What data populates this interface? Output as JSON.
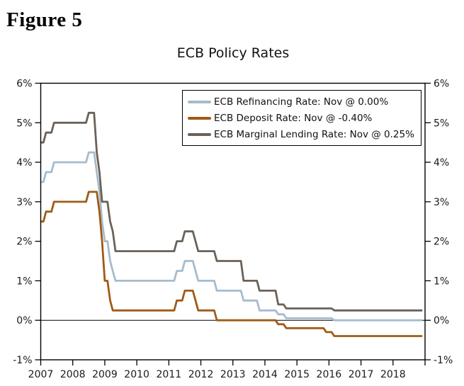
{
  "figure_label": "Figure 5",
  "chart_data": {
    "type": "line",
    "title": "ECB Policy Rates",
    "x_start": "2007-01",
    "x_end": "2018-11",
    "x_months_total": 144,
    "ylim": [
      -1,
      6
    ],
    "grid": "zero-line-only",
    "legend_position": "inside-top-right",
    "axis_color": "#000000",
    "y_ticks": [
      {
        "value": 6,
        "label": "6%"
      },
      {
        "value": 5,
        "label": "5%"
      },
      {
        "value": 4,
        "label": "4%"
      },
      {
        "value": 3,
        "label": "3%"
      },
      {
        "value": 2,
        "label": "2%"
      },
      {
        "value": 1,
        "label": "1%"
      },
      {
        "value": 0,
        "label": "0%"
      },
      {
        "value": -1,
        "label": "-1%"
      }
    ],
    "x_ticks": [
      {
        "year": 2007,
        "label": "2007"
      },
      {
        "year": 2008,
        "label": "2008"
      },
      {
        "year": 2009,
        "label": "2009"
      },
      {
        "year": 2010,
        "label": "2010"
      },
      {
        "year": 2011,
        "label": "2011"
      },
      {
        "year": 2012,
        "label": "2012"
      },
      {
        "year": 2013,
        "label": "2013"
      },
      {
        "year": 2014,
        "label": "2014"
      },
      {
        "year": 2015,
        "label": "2015"
      },
      {
        "year": 2016,
        "label": "2016"
      },
      {
        "year": 2017,
        "label": "2017"
      },
      {
        "year": 2018,
        "label": "2018"
      }
    ],
    "series": [
      {
        "id": "refinancing",
        "label": "ECB Refinancing Rate: Nov @ 0.00%",
        "color": "#a5bccd",
        "steps": [
          [
            "2007-01",
            3.5
          ],
          [
            "2007-03",
            3.75
          ],
          [
            "2007-06",
            4.0
          ],
          [
            "2008-07",
            4.25
          ],
          [
            "2008-10",
            3.75
          ],
          [
            "2008-11",
            3.25
          ],
          [
            "2008-12",
            2.5
          ],
          [
            "2009-01",
            2.0
          ],
          [
            "2009-03",
            1.5
          ],
          [
            "2009-04",
            1.25
          ],
          [
            "2009-05",
            1.0
          ],
          [
            "2011-04",
            1.25
          ],
          [
            "2011-07",
            1.5
          ],
          [
            "2011-11",
            1.25
          ],
          [
            "2011-12",
            1.0
          ],
          [
            "2012-07",
            0.75
          ],
          [
            "2013-05",
            0.5
          ],
          [
            "2013-11",
            0.25
          ],
          [
            "2014-06",
            0.15
          ],
          [
            "2014-09",
            0.05
          ],
          [
            "2016-03",
            0.0
          ]
        ]
      },
      {
        "id": "deposit",
        "label": "ECB Deposit Rate: Nov @ -0.40%",
        "color": "#a05a15",
        "steps": [
          [
            "2007-01",
            2.5
          ],
          [
            "2007-03",
            2.75
          ],
          [
            "2007-06",
            3.0
          ],
          [
            "2008-07",
            3.25
          ],
          [
            "2008-11",
            2.75
          ],
          [
            "2008-12",
            2.0
          ],
          [
            "2009-01",
            1.0
          ],
          [
            "2009-03",
            0.5
          ],
          [
            "2009-04",
            0.25
          ],
          [
            "2011-04",
            0.5
          ],
          [
            "2011-07",
            0.75
          ],
          [
            "2011-11",
            0.5
          ],
          [
            "2011-12",
            0.25
          ],
          [
            "2012-07",
            0.0
          ],
          [
            "2014-06",
            -0.1
          ],
          [
            "2014-09",
            -0.2
          ],
          [
            "2015-12",
            -0.3
          ],
          [
            "2016-03",
            -0.4
          ]
        ]
      },
      {
        "id": "marginal_lending",
        "label": "ECB Marginal Lending Rate: Nov @ 0.25%",
        "color": "#6b6158",
        "steps": [
          [
            "2007-01",
            4.5
          ],
          [
            "2007-03",
            4.75
          ],
          [
            "2007-06",
            5.0
          ],
          [
            "2008-07",
            5.25
          ],
          [
            "2008-10",
            4.25
          ],
          [
            "2008-11",
            3.75
          ],
          [
            "2008-12",
            3.0
          ],
          [
            "2009-03",
            2.5
          ],
          [
            "2009-04",
            2.25
          ],
          [
            "2009-05",
            1.75
          ],
          [
            "2011-04",
            2.0
          ],
          [
            "2011-07",
            2.25
          ],
          [
            "2011-11",
            2.0
          ],
          [
            "2011-12",
            1.75
          ],
          [
            "2012-07",
            1.5
          ],
          [
            "2013-05",
            1.0
          ],
          [
            "2013-11",
            0.75
          ],
          [
            "2014-06",
            0.4
          ],
          [
            "2014-09",
            0.3
          ],
          [
            "2016-03",
            0.25
          ]
        ]
      }
    ]
  }
}
